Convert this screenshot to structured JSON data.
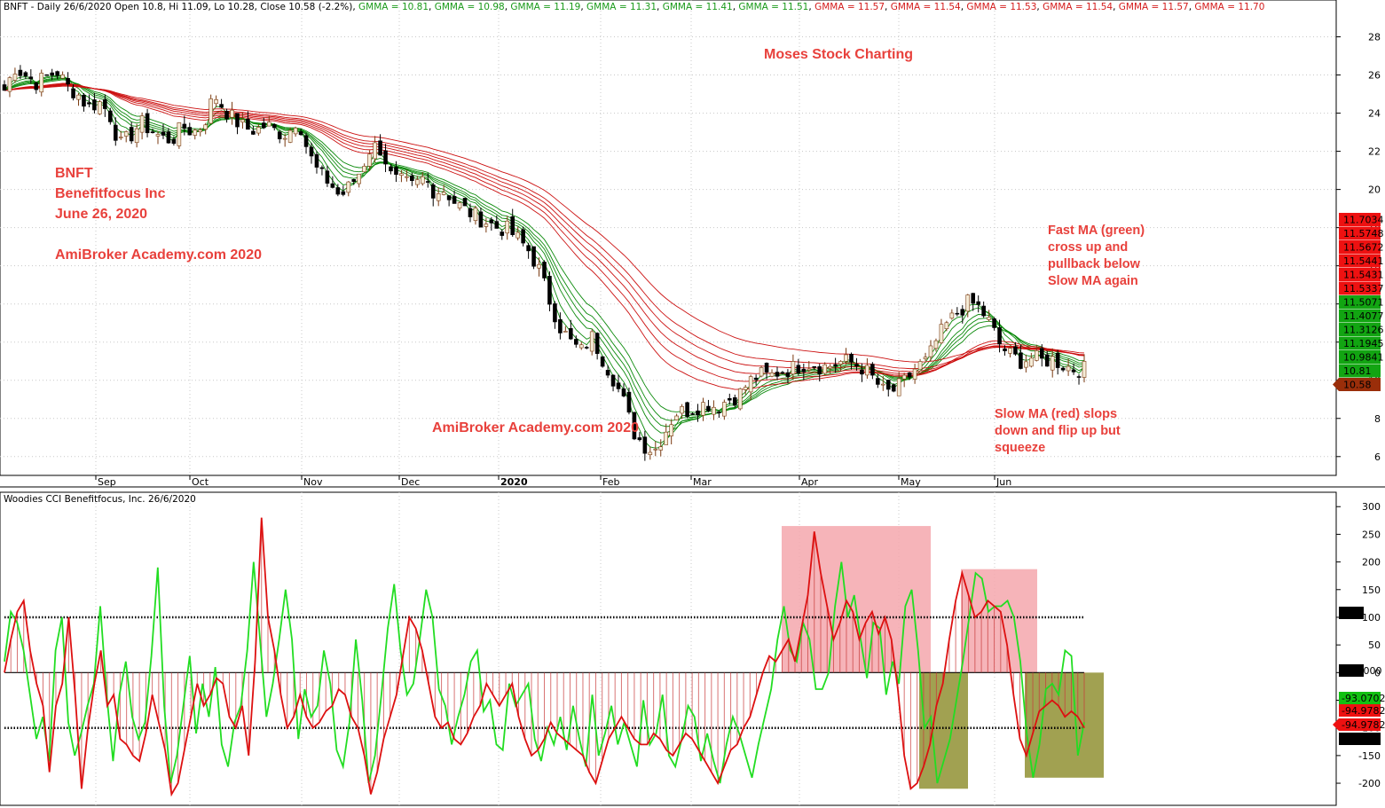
{
  "colors": {
    "up": "#f5ecd7",
    "down": "#000000",
    "green": "#16b016",
    "red": "#dd1111",
    "pink": "#f4a7ad",
    "olive": "#8a8a26"
  },
  "top_header": {
    "prefix": "BNFT - Daily 26/6/2020 Open 10.8, Hi 11.09, Lo 10.28, Close 10.58 (-2.2%)",
    "gmma": [
      {
        "text": "GMMA = 10.81",
        "color": "green"
      },
      {
        "text": "GMMA = 10.98",
        "color": "green"
      },
      {
        "text": "GMMA = 11.19",
        "color": "green"
      },
      {
        "text": "GMMA = 11.31",
        "color": "green"
      },
      {
        "text": "GMMA = 11.41",
        "color": "green"
      },
      {
        "text": "GMMA = 11.51",
        "color": "green"
      },
      {
        "text": "GMMA = 11.57",
        "color": "red"
      },
      {
        "text": "GMMA = 11.54",
        "color": "red"
      },
      {
        "text": "GMMA = 11.53",
        "color": "red"
      },
      {
        "text": "GMMA = 11.54",
        "color": "red"
      },
      {
        "text": "GMMA = 11.57",
        "color": "red"
      },
      {
        "text": "GMMA = 11.70",
        "color": "red"
      }
    ]
  },
  "bottom_header": "Woodies CCI  Benefitfocus, Inc. 26/6/2020",
  "annotations": {
    "moses": "Moses Stock Charting",
    "ticker": "BNFT",
    "company": "Benefitfocus Inc",
    "date": "June 26, 2020",
    "site1": "AmiBroker Academy.com  2020",
    "site2": "AmiBroker Academy.com 2020",
    "fast_ma": [
      "Fast MA (green)",
      "cross up and",
      "pullback below",
      "Slow MA again"
    ],
    "slow_ma": [
      "Slow MA (red) slops",
      "down and flip up but",
      "squeeze"
    ]
  },
  "chart_data": [
    {
      "type": "candlestick",
      "title": "BNFT - Daily",
      "x_ticks": [
        "Sep",
        "Oct",
        "Nov",
        "Dec",
        "2020",
        "Feb",
        "Mar",
        "Apr",
        "May",
        "Jun"
      ],
      "y_ticks": [
        6,
        8,
        10,
        12,
        14,
        16,
        18,
        20,
        22,
        24,
        26,
        28
      ],
      "ylim": [
        5.2,
        29
      ],
      "close_path": [
        25.2,
        26.4,
        26.0,
        25.6,
        25.9,
        26.2,
        25.4,
        25.0,
        24.3,
        24.6,
        24.0,
        22.3,
        22.8,
        23.5,
        23.1,
        22.7,
        22.6,
        23.3,
        23.0,
        23.4,
        25.0,
        24.2,
        23.6,
        23.2,
        23.1,
        23.4,
        23.0,
        22.9,
        23.8,
        21.9,
        20.8,
        20.4,
        19.6,
        20.2,
        21.0,
        22.3,
        22.1,
        20.5,
        20.4,
        20.1,
        20.6,
        19.9,
        20.0,
        19.3,
        18.9,
        18.6,
        18.3,
        18.0,
        17.9,
        17.4,
        16.8,
        15.8,
        14.2,
        12.8,
        12.0,
        11.5,
        12.3,
        11.2,
        10.2,
        9.0,
        7.3,
        6.6,
        6.3,
        7.3,
        8.3,
        8.4,
        8.6,
        8.8,
        8.6,
        9.0,
        9.2,
        9.9,
        10.3,
        10.2,
        10.5,
        10.6,
        10.8,
        10.9,
        10.7,
        10.8,
        11.0,
        10.9,
        10.6,
        10.0,
        9.3,
        9.5,
        10.0,
        10.7,
        11.0,
        12.2,
        13.0,
        13.6,
        14.1,
        13.8,
        13.0,
        11.8,
        11.3,
        11.0,
        11.2,
        11.0,
        11.1,
        10.8,
        10.6,
        10.58
      ],
      "slow_gmma_last": [
        11.57,
        11.54,
        11.53,
        11.54,
        11.57,
        11.7
      ],
      "fast_gmma_last": [
        10.81,
        10.98,
        11.19,
        11.31,
        11.41,
        11.51
      ],
      "right_labels": [
        {
          "text": "11.7034",
          "color": "red"
        },
        {
          "text": "11.5748",
          "color": "red"
        },
        {
          "text": "11.5672",
          "color": "red"
        },
        {
          "text": "11.5441",
          "color": "red"
        },
        {
          "text": "11.5431",
          "color": "red"
        },
        {
          "text": "11.5337",
          "color": "red"
        },
        {
          "text": "11.5071",
          "color": "green"
        },
        {
          "text": "11.4077",
          "color": "green"
        },
        {
          "text": "11.3126",
          "color": "green"
        },
        {
          "text": "11.1945",
          "color": "green"
        },
        {
          "text": "10.9841",
          "color": "green"
        },
        {
          "text": "10.81",
          "color": "green"
        },
        {
          "text": "10.58",
          "color": "brown"
        }
      ]
    },
    {
      "type": "line",
      "title": "Woodies CCI",
      "y_ticks": [
        -200,
        -150,
        -100,
        -50,
        0,
        50,
        100,
        150,
        200,
        250,
        300
      ],
      "ylim": [
        -240,
        310
      ],
      "reference_lines": [
        -100,
        0,
        100
      ],
      "series": [
        {
          "color": "red",
          "values": [
            0,
            60,
            110,
            130,
            40,
            -20,
            -60,
            -180,
            -60,
            -20,
            100,
            -40,
            -210,
            -100,
            -20,
            40,
            -60,
            -40,
            -120,
            -130,
            -150,
            -160,
            -110,
            -40,
            -90,
            -140,
            -220,
            -200,
            -140,
            -80,
            -20,
            -60,
            -40,
            -10,
            -20,
            -80,
            -100,
            -60,
            -150,
            20,
            280,
            100,
            40,
            -40,
            -100,
            -80,
            -40,
            -80,
            -100,
            -90,
            -70,
            -60,
            -30,
            -40,
            -80,
            -100,
            -150,
            -220,
            -180,
            -120,
            -80,
            -40,
            30,
            100,
            80,
            40,
            -20,
            -80,
            -100,
            -90,
            -120,
            -130,
            -110,
            -80,
            -60,
            -20,
            -40,
            -60,
            -40,
            -20,
            -80,
            -120,
            -150,
            -140,
            -120,
            -90,
            -110,
            -120,
            -130,
            -140,
            -150,
            -180,
            -200,
            -160,
            -120,
            -100,
            -80,
            -100,
            -120,
            -130,
            -130,
            -110,
            -120,
            -140,
            -150,
            -130,
            -110,
            -120,
            -140,
            -160,
            -180,
            -200,
            -170,
            -140,
            -130,
            -100,
            -80,
            -40,
            0,
            30,
            20,
            40,
            60,
            20,
            80,
            140,
            255,
            180,
            120,
            60,
            90,
            130,
            110,
            60,
            90,
            110,
            70,
            100,
            60,
            -30,
            -150,
            -210,
            -200,
            -170,
            -130,
            -60,
            -20,
            60,
            130,
            180,
            140,
            100,
            110,
            130,
            120,
            110,
            50,
            -40,
            -120,
            -150,
            -110,
            -70,
            -60,
            -50,
            -60,
            -80,
            -70,
            -80,
            -100
          ]
        },
        {
          "color": "green",
          "values": [
            20,
            110,
            90,
            40,
            -40,
            -120,
            -80,
            -160,
            40,
            100,
            -90,
            -150,
            -110,
            -60,
            -20,
            120,
            -40,
            -160,
            -40,
            20,
            -80,
            -120,
            -90,
            30,
            190,
            -60,
            -200,
            -150,
            -60,
            30,
            -110,
            -20,
            -80,
            10,
            -130,
            -170,
            -90,
            -60,
            40,
            200,
            60,
            -80,
            -20,
            60,
            150,
            60,
            -120,
            -30,
            -80,
            -60,
            40,
            -20,
            -140,
            -170,
            -90,
            60,
            -50,
            -200,
            -150,
            -40,
            80,
            160,
            40,
            -40,
            -20,
            60,
            150,
            100,
            -30,
            -60,
            -130,
            -80,
            -40,
            20,
            40,
            -70,
            -50,
            -130,
            -140,
            -20,
            -60,
            -40,
            -20,
            -120,
            -160,
            -100,
            -130,
            -80,
            -140,
            -60,
            -120,
            -170,
            -40,
            -150,
            -110,
            -60,
            -130,
            -90,
            -130,
            -170,
            -50,
            -130,
            -110,
            -40,
            -150,
            -170,
            -120,
            -60,
            -80,
            -160,
            -110,
            -160,
            -200,
            -130,
            -80,
            -110,
            -150,
            -190,
            -130,
            -80,
            -30,
            60,
            120,
            40,
            20,
            90,
            60,
            -30,
            -30,
            0,
            120,
            200,
            100,
            140,
            60,
            -10,
            90,
            80,
            -40,
            20,
            -20,
            120,
            150,
            40,
            -100,
            -80,
            -200,
            -160,
            -120,
            -50,
            20,
            100,
            180,
            170,
            110,
            120,
            120,
            130,
            100,
            20,
            -110,
            -190,
            -130,
            -30,
            -20,
            -40,
            40,
            30,
            -150,
            -90
          ]
        }
      ],
      "right_labels": [
        {
          "text": "100",
          "color": "black"
        },
        {
          "text": "0.00000",
          "color": "black"
        },
        {
          "text": "-93.0702",
          "color": "green"
        },
        {
          "text": "-94.9782",
          "color": "red"
        },
        {
          "text": "-94.9782",
          "color": "red"
        },
        {
          "text": "-100",
          "color": "black"
        }
      ]
    }
  ]
}
